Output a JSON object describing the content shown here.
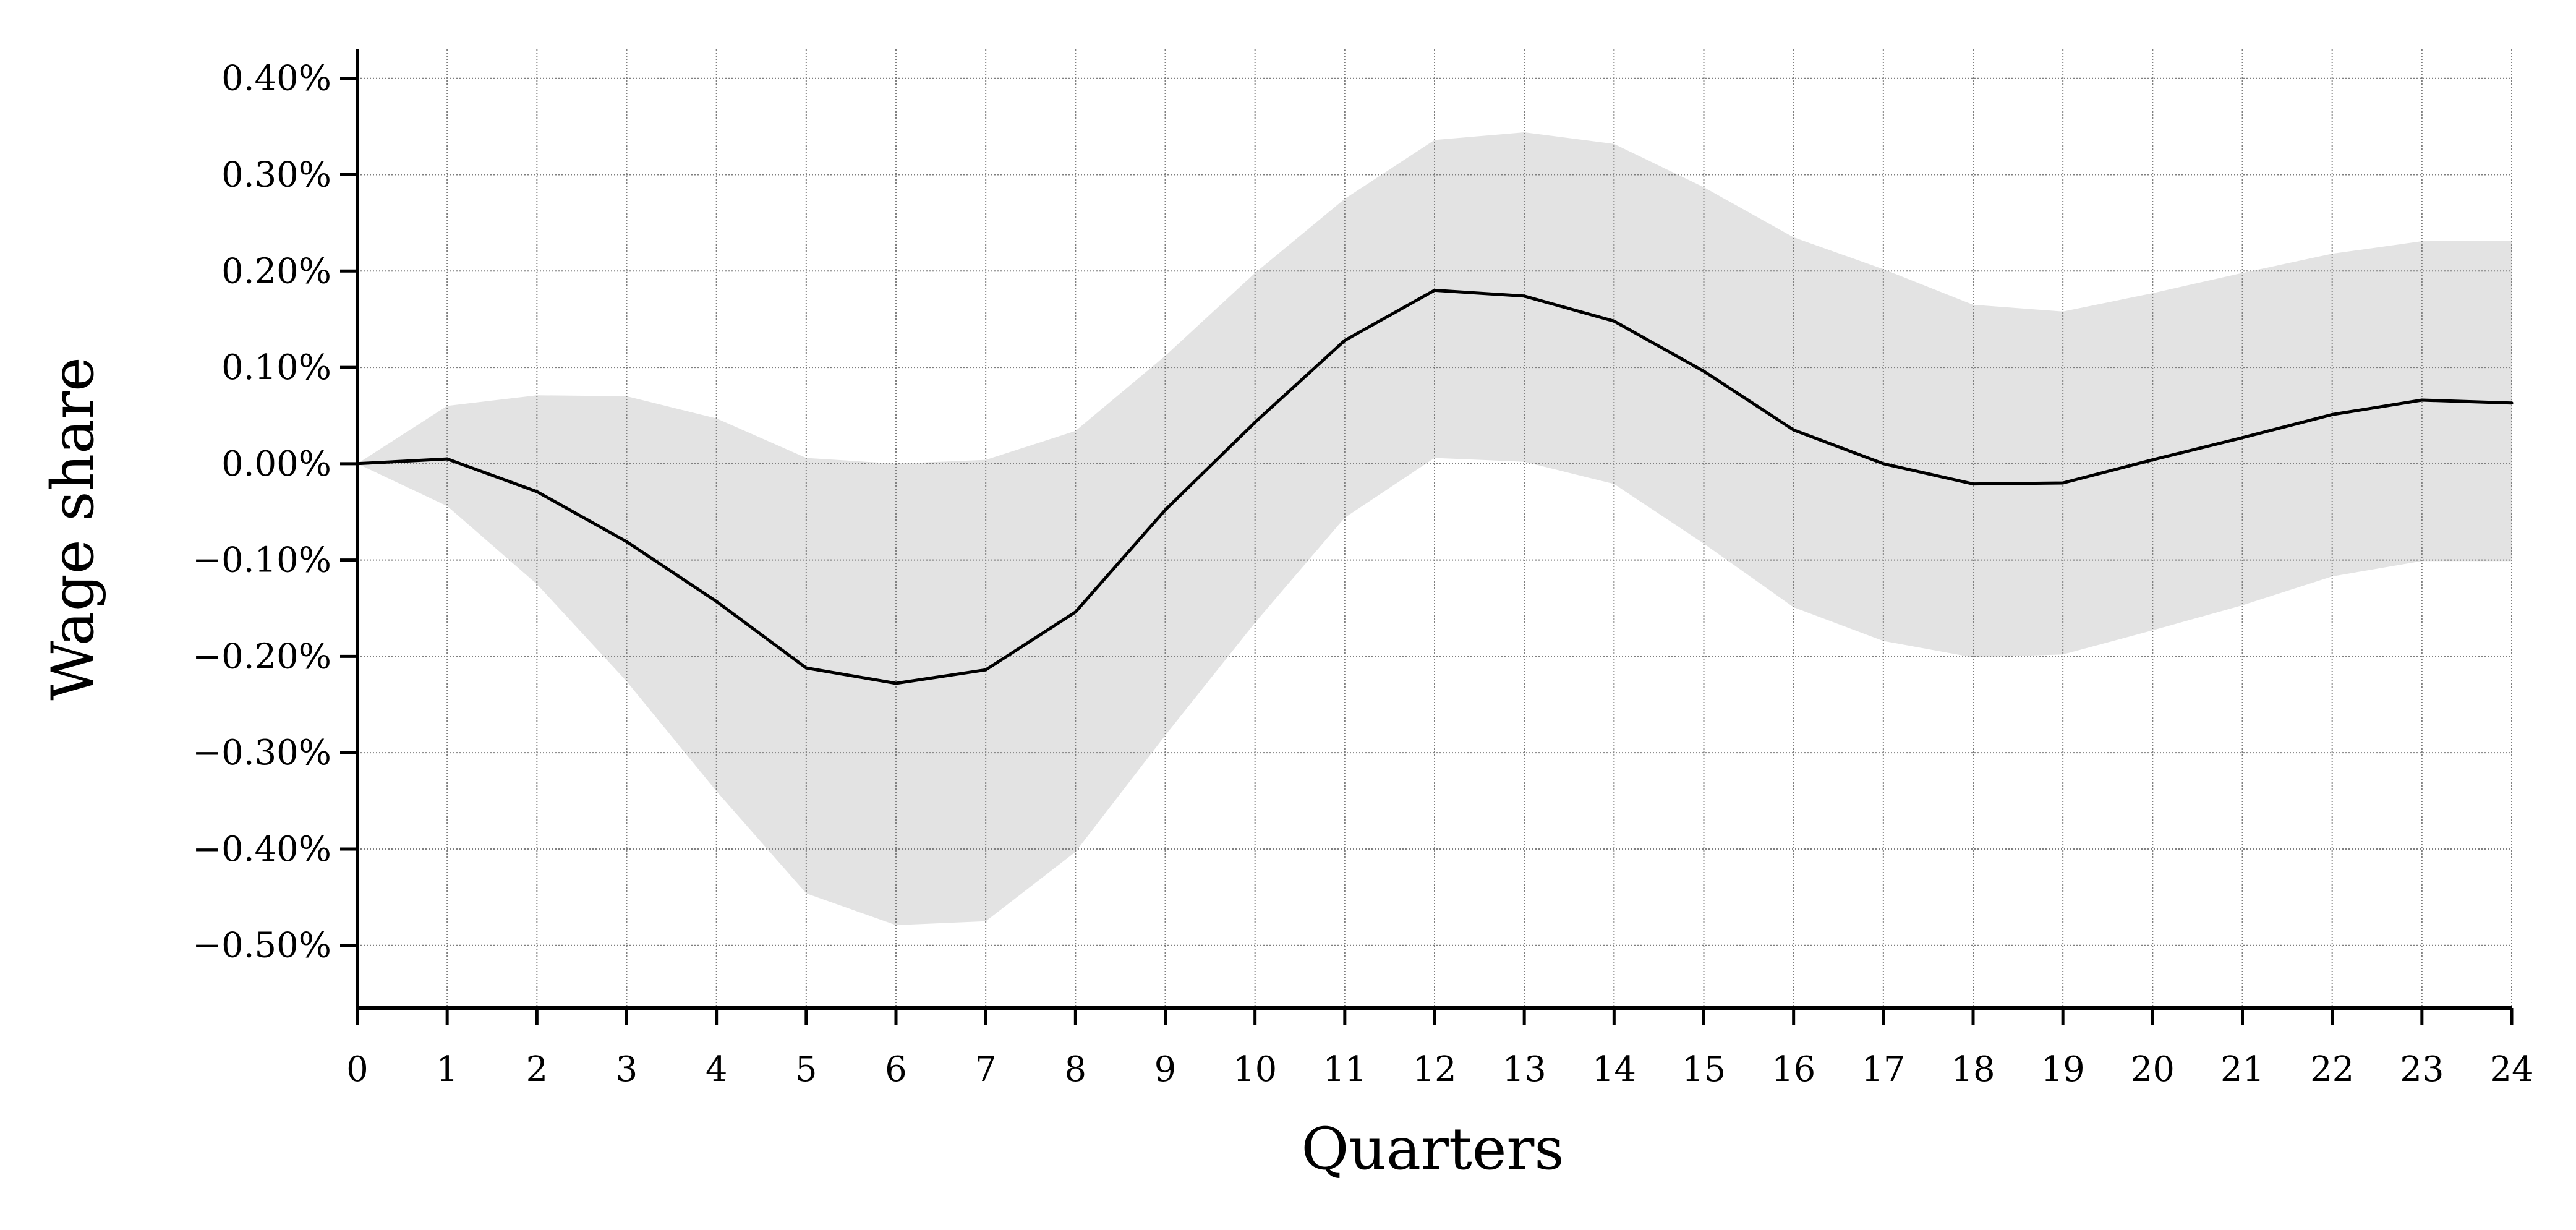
{
  "chart_data": {
    "type": "line",
    "xlabel": "Quarters",
    "ylabel": "Wage share",
    "xlim": [
      0,
      24
    ],
    "ylim": [
      -0.565,
      0.43
    ],
    "grid": true,
    "x": [
      0,
      1,
      2,
      3,
      4,
      5,
      6,
      7,
      8,
      9,
      10,
      11,
      12,
      13,
      14,
      15,
      16,
      17,
      18,
      19,
      20,
      21,
      22,
      23,
      24
    ],
    "xtick_labels": [
      "0",
      "1",
      "2",
      "3",
      "4",
      "5",
      "6",
      "7",
      "8",
      "9",
      "10",
      "11",
      "12",
      "13",
      "14",
      "15",
      "16",
      "17",
      "18",
      "19",
      "20",
      "21",
      "22",
      "23",
      "24"
    ],
    "yticks": [
      0.4,
      0.3,
      0.2,
      0.1,
      0.0,
      -0.1,
      -0.2,
      -0.3,
      -0.4,
      -0.5
    ],
    "ytick_labels": [
      "0.40%",
      "0.30%",
      "0.20%",
      "0.10%",
      "0.00%",
      "−0.10%",
      "−0.20%",
      "−0.30%",
      "−0.40%",
      "−0.50%"
    ],
    "series": [
      {
        "values": [
          0.0,
          0.005,
          -0.029,
          -0.081,
          -0.143,
          -0.212,
          -0.228,
          -0.214,
          -0.154,
          -0.048,
          0.043,
          0.128,
          0.18,
          0.174,
          0.148,
          0.096,
          0.035,
          0.0,
          -0.021,
          -0.02,
          0.004,
          0.027,
          0.051,
          0.066,
          0.063
        ]
      }
    ],
    "band": {
      "upper": [
        0.0,
        0.06,
        0.071,
        0.07,
        0.047,
        0.006,
        0.0,
        0.004,
        0.034,
        0.112,
        0.198,
        0.275,
        0.336,
        0.344,
        0.332,
        0.287,
        0.235,
        0.202,
        0.165,
        0.158,
        0.177,
        0.198,
        0.218,
        0.231,
        0.231
      ],
      "lower": [
        0.0,
        -0.044,
        -0.125,
        -0.226,
        -0.34,
        -0.446,
        -0.479,
        -0.475,
        -0.403,
        -0.282,
        -0.165,
        -0.056,
        0.006,
        0.002,
        -0.021,
        -0.083,
        -0.149,
        -0.184,
        -0.201,
        -0.198,
        -0.173,
        -0.147,
        -0.117,
        -0.101,
        -0.101
      ]
    },
    "colors": {
      "line": "#000000",
      "band": "#e3e3e3",
      "grid": "#7f7f7f",
      "axis": "#000000"
    }
  }
}
